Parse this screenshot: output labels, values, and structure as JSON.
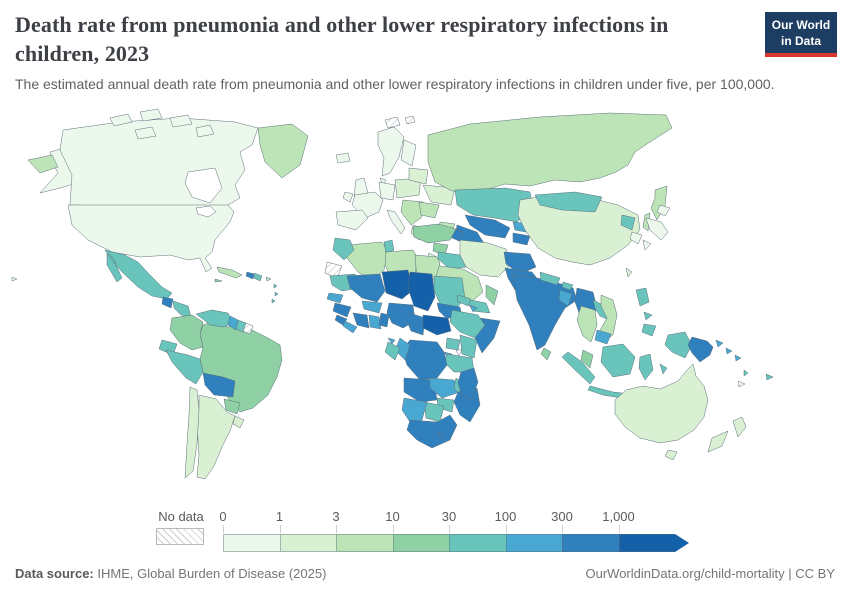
{
  "header": {
    "title": "Death rate from pneumonia and other lower respiratory infections in children, 2023",
    "subtitle": "The estimated annual death rate from pneumonia and other lower respiratory infections in children under five, per 100,000.",
    "logo": {
      "line1": "Our World",
      "line2": "in Data"
    }
  },
  "legend": {
    "no_data_label": "No data",
    "tick_labels": [
      "0",
      "1",
      "3",
      "10",
      "30",
      "100",
      "300",
      "1,000"
    ]
  },
  "footer": {
    "source_label": "Data source:",
    "source_text": " IHME, Global Burden of Disease (2025)",
    "link_text": "OurWorldinData.org/child-mortality",
    "separator": " | ",
    "license_text": "CC BY"
  },
  "chart_data": {
    "type": "choropleth-world-map",
    "title": "Death rate from pneumonia and other lower respiratory infections in children, 2023",
    "metric": "Estimated annual death rate from pneumonia and other lower respiratory infections in children under five",
    "unit": "deaths per 100,000",
    "year": 2023,
    "scale_type": "log",
    "bin_thresholds": [
      0,
      1,
      3,
      10,
      30,
      100,
      300,
      1000
    ],
    "bin_colors": [
      "#edf8ec",
      "#d9f0d3",
      "#bce4b6",
      "#8fd1a4",
      "#69c4bc",
      "#49a8d1",
      "#2f80bc",
      "#1561a9"
    ],
    "border_color": "#5d6f7b",
    "ocean_color": "#ffffff",
    "no_data_regions": [
      "western-sahara",
      "french-guiana",
      "svalbard",
      "new-caledonia"
    ],
    "regions": {
      "alaska": 0,
      "canada": 0,
      "arctic-islands": 0,
      "greenland": 2,
      "usa": 0,
      "hawaii": 0,
      "mexico": 4,
      "guatemala": 6,
      "honduras-nicaragua": 4,
      "costa-rica-panama": 3,
      "cuba": 2,
      "jamaica": 3,
      "haiti": 6,
      "dominican-republic": 4,
      "puerto-rico": 2,
      "lesser-antilles": 4,
      "colombia": 3,
      "venezuela": 4,
      "guyana": 5,
      "suriname": 4,
      "ecuador": 4,
      "peru": 4,
      "brazil": 3,
      "bolivia": 6,
      "paraguay": 3,
      "argentina": 1,
      "chile": 1,
      "uruguay": 1,
      "iceland": 0,
      "uk": 0,
      "ireland": 0,
      "norway-sweden": 0,
      "finland": 0,
      "denmark": 0,
      "germany": 0,
      "france": 0,
      "iberia": 0,
      "italy": 0,
      "central-europe": 1,
      "balkans": 2,
      "greece": 1,
      "ukraine": 1,
      "belarus-baltics": 1,
      "romania-bulgaria": 2,
      "russia": 2,
      "kamchatka": 2,
      "sakhalin": 2,
      "chukotka-wrap": 2,
      "kazakhstan": 4,
      "uzbekistan": 6,
      "turkmenistan": 6,
      "kyrgyzstan": 5,
      "tajikistan": 6,
      "georgia": 2,
      "armenia": 3,
      "azerbaijan": 6,
      "turkey": 3,
      "syria": 3,
      "iraq": 4,
      "iran": 1,
      "saudi-arabia": 2,
      "yemen": 4,
      "oman": 3,
      "jordan-israel": 1,
      "afghanistan": 6,
      "pakistan": 6,
      "india": 6,
      "nepal": 4,
      "bhutan": 4,
      "bangladesh": 5,
      "sri-lanka": 3,
      "myanmar": 6,
      "china": 1,
      "taiwan": 1,
      "mongolia": 4,
      "north-korea": 4,
      "south-korea": 0,
      "japan": 0,
      "thailand": 2,
      "laos": 4,
      "vietnam": 2,
      "cambodia": 5,
      "malaysia": 3,
      "sumatra": 4,
      "java": 4,
      "borneo": 4,
      "sulawesi": 4,
      "lesser-sunda": 4,
      "moluccas": 4,
      "philippines": 4,
      "west-papua": 4,
      "papua-new-guinea": 6,
      "png-islands": 5,
      "solomon-islands": 5,
      "vanuatu": 4,
      "fiji": 4,
      "australia": 1,
      "tasmania": 1,
      "new-zealand": 1,
      "morocco": 4,
      "algeria": 2,
      "tunisia": 4,
      "libya": 2,
      "egypt": 2,
      "mauritania": 4,
      "mali": 6,
      "niger": 7,
      "chad": 7,
      "sudan": 4,
      "eritrea": 4,
      "djibouti": 5,
      "senegal": 5,
      "guinea": 6,
      "sierra-leone": 6,
      "liberia": 5,
      "ivory-coast": 6,
      "ghana": 5,
      "togo-benin": 6,
      "burkina-faso": 5,
      "nigeria": 6,
      "cameroon": 6,
      "central-african-republic": 7,
      "south-sudan": 6,
      "ethiopia": 4,
      "somalia": 6,
      "kenya": 4,
      "uganda": 4,
      "rwanda-burundi": 5,
      "tanzania": 4,
      "drc": 6,
      "congo": 5,
      "gabon": 4,
      "equatorial-guinea": 5,
      "angola": 6,
      "zambia": 5,
      "malawi": 4,
      "mozambique": 6,
      "zimbabwe": 4,
      "botswana": 4,
      "namibia": 5,
      "south-africa": 6,
      "lesotho": 6,
      "madagascar": 6
    }
  }
}
